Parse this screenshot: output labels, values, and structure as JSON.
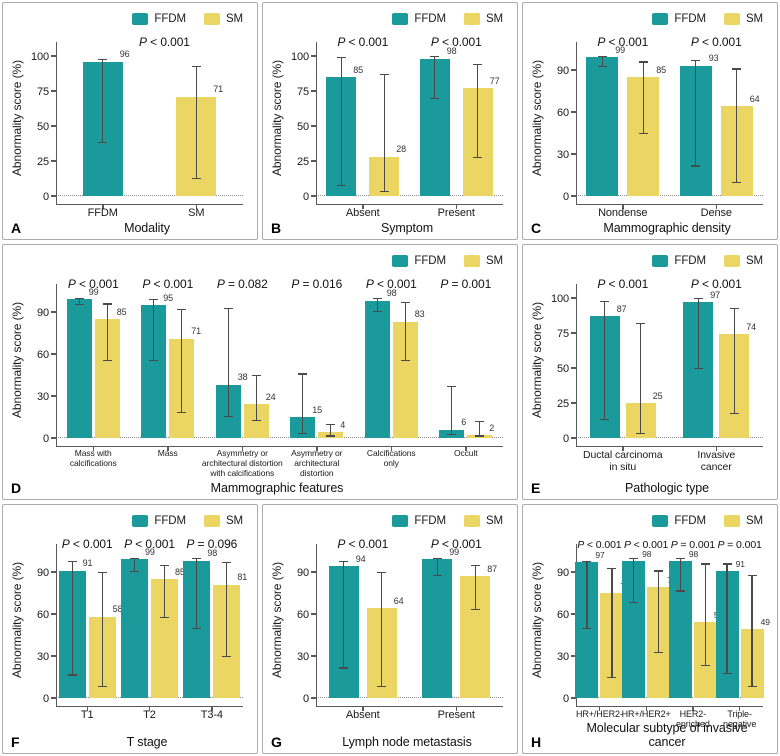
{
  "colors": {
    "ffdm": "#1b9a9b",
    "sm": "#ebd563",
    "error_bar": "#4a4a4a",
    "axis": "#5a5a5a",
    "panel_border": "#acacac"
  },
  "legend": {
    "items": [
      {
        "name": "FFDM",
        "color_key": "ffdm"
      },
      {
        "name": "SM",
        "color_key": "sm"
      }
    ],
    "position": "top-right"
  },
  "chart_data": [
    {
      "panel": "A",
      "type": "bar",
      "xlabel": "Modality",
      "ylabel": "Abnormality score (%)",
      "yticks": [
        0,
        25,
        50,
        75,
        100
      ],
      "ylim": [
        0,
        100
      ],
      "grid": false,
      "p_overall": "P < 0.001",
      "groups": [
        {
          "label": "FFDM",
          "bars": [
            {
              "series": "FFDM",
              "value": 96,
              "ci": [
                38,
                98
              ]
            }
          ]
        },
        {
          "label": "SM",
          "bars": [
            {
              "series": "SM",
              "value": 71,
              "ci": [
                12,
                93
              ]
            }
          ]
        }
      ]
    },
    {
      "panel": "B",
      "type": "bar",
      "xlabel": "Symptom",
      "ylabel": "Abnormality score (%)",
      "yticks": [
        0,
        25,
        50,
        75,
        100
      ],
      "ylim": [
        0,
        100
      ],
      "grid": false,
      "groups": [
        {
          "label": "Absent",
          "p": "P < 0.001",
          "bars": [
            {
              "series": "FFDM",
              "value": 85,
              "ci": [
                7,
                99
              ]
            },
            {
              "series": "SM",
              "value": 28,
              "ci": [
                3,
                87
              ]
            }
          ]
        },
        {
          "label": "Present",
          "p": "P < 0.001",
          "bars": [
            {
              "series": "FFDM",
              "value": 98,
              "ci": [
                69,
                100
              ]
            },
            {
              "series": "SM",
              "value": 77,
              "ci": [
                27,
                94
              ]
            }
          ]
        }
      ]
    },
    {
      "panel": "C",
      "type": "bar",
      "xlabel": "Mammographic density",
      "ylabel": "Abnormality score (%)",
      "yticks": [
        0,
        30,
        60,
        90
      ],
      "ylim": [
        0,
        100
      ],
      "grid": false,
      "groups": [
        {
          "label": "Nondense",
          "p": "P < 0.001",
          "bars": [
            {
              "series": "FFDM",
              "value": 99,
              "ci": [
                92,
                100
              ]
            },
            {
              "series": "SM",
              "value": 85,
              "ci": [
                44,
                96
              ]
            }
          ]
        },
        {
          "label": "Dense",
          "p": "P < 0.001",
          "bars": [
            {
              "series": "FFDM",
              "value": 93,
              "ci": [
                21,
                97
              ]
            },
            {
              "series": "SM",
              "value": 64,
              "ci": [
                9,
                91
              ]
            }
          ]
        }
      ]
    },
    {
      "panel": "D",
      "type": "bar",
      "xlabel": "Mammographic features",
      "ylabel": "Abnormality score (%)",
      "yticks": [
        0,
        30,
        60,
        90
      ],
      "ylim": [
        0,
        100
      ],
      "grid": false,
      "groups": [
        {
          "label": "Mass with\ncalcifications",
          "p": "P < 0.001",
          "bars": [
            {
              "series": "FFDM",
              "value": 99,
              "ci": [
                95,
                100
              ]
            },
            {
              "series": "SM",
              "value": 85,
              "ci": [
                55,
                96
              ]
            }
          ]
        },
        {
          "label": "Mass",
          "p": "P < 0.001",
          "bars": [
            {
              "series": "FFDM",
              "value": 95,
              "ci": [
                55,
                99
              ]
            },
            {
              "series": "SM",
              "value": 71,
              "ci": [
                18,
                92
              ]
            }
          ]
        },
        {
          "label": "Asymmetry or\narchitectural distortion\nwith calcifications",
          "p": "P = 0.082",
          "bars": [
            {
              "series": "FFDM",
              "value": 38,
              "ci": [
                15,
                93
              ]
            },
            {
              "series": "SM",
              "value": 24,
              "ci": [
                12,
                45
              ]
            }
          ]
        },
        {
          "label": "Asymmetry or\narchitectural\ndistortion",
          "p": "P = 0.016",
          "bars": [
            {
              "series": "FFDM",
              "value": 15,
              "ci": [
                3,
                46
              ]
            },
            {
              "series": "SM",
              "value": 4,
              "ci": [
                1,
                10
              ]
            }
          ]
        },
        {
          "label": "Calcifications\nonly",
          "p": "P < 0.001",
          "bars": [
            {
              "series": "FFDM",
              "value": 98,
              "ci": [
                90,
                100
              ]
            },
            {
              "series": "SM",
              "value": 83,
              "ci": [
                55,
                97
              ]
            }
          ]
        },
        {
          "label": "Occult",
          "p": "P = 0.001",
          "bars": [
            {
              "series": "FFDM",
              "value": 6,
              "ci": [
                2,
                37
              ]
            },
            {
              "series": "SM",
              "value": 2,
              "ci": [
                1,
                12
              ]
            }
          ]
        }
      ]
    },
    {
      "panel": "E",
      "type": "bar",
      "xlabel": "Pathologic type",
      "ylabel": "Abnormality score (%)",
      "yticks": [
        0,
        25,
        50,
        75,
        100
      ],
      "ylim": [
        0,
        100
      ],
      "grid": false,
      "groups": [
        {
          "label": "Ductal carcinoma\nin situ",
          "p": "P < 0.001",
          "bars": [
            {
              "series": "FFDM",
              "value": 87,
              "ci": [
                13,
                98
              ]
            },
            {
              "series": "SM",
              "value": 25,
              "ci": [
                3,
                82
              ]
            }
          ]
        },
        {
          "label": "Invasive\ncancer",
          "p": "P < 0.001",
          "bars": [
            {
              "series": "FFDM",
              "value": 97,
              "ci": [
                49,
                100
              ]
            },
            {
              "series": "SM",
              "value": 74,
              "ci": [
                17,
                93
              ]
            }
          ]
        }
      ]
    },
    {
      "panel": "F",
      "type": "bar",
      "xlabel": "T stage",
      "ylabel": "Abnormality score (%)",
      "yticks": [
        0,
        30,
        60,
        90
      ],
      "ylim": [
        0,
        100
      ],
      "grid": false,
      "groups": [
        {
          "label": "T1",
          "p": "P < 0.001",
          "bars": [
            {
              "series": "FFDM",
              "value": 91,
              "ci": [
                16,
                98
              ]
            },
            {
              "series": "SM",
              "value": 58,
              "ci": [
                8,
                90
              ]
            }
          ]
        },
        {
          "label": "T2",
          "p": "P < 0.001",
          "bars": [
            {
              "series": "FFDM",
              "value": 99,
              "ci": [
                90,
                100
              ]
            },
            {
              "series": "SM",
              "value": 85,
              "ci": [
                57,
                95
              ]
            }
          ]
        },
        {
          "label": "T3-4",
          "p": "P = 0.096",
          "bars": [
            {
              "series": "FFDM",
              "value": 98,
              "ci": [
                49,
                100
              ]
            },
            {
              "series": "SM",
              "value": 81,
              "ci": [
                29,
                97
              ]
            }
          ]
        }
      ]
    },
    {
      "panel": "G",
      "type": "bar",
      "xlabel": "Lymph node metastasis",
      "ylabel": "Abnormality score (%)",
      "yticks": [
        0,
        30,
        60,
        90
      ],
      "ylim": [
        0,
        100
      ],
      "grid": false,
      "groups": [
        {
          "label": "Absent",
          "p": "P < 0.001",
          "bars": [
            {
              "series": "FFDM",
              "value": 94,
              "ci": [
                21,
                98
              ]
            },
            {
              "series": "SM",
              "value": 64,
              "ci": [
                8,
                90
              ]
            }
          ]
        },
        {
          "label": "Present",
          "p": "P < 0.001",
          "bars": [
            {
              "series": "FFDM",
              "value": 99,
              "ci": [
                87,
                100
              ]
            },
            {
              "series": "SM",
              "value": 87,
              "ci": [
                63,
                95
              ]
            }
          ]
        }
      ]
    },
    {
      "panel": "H",
      "type": "bar",
      "xlabel": "Molecular subtype of invasive cancer",
      "ylabel": "Abnormality score (%)",
      "yticks": [
        0,
        30,
        60,
        90
      ],
      "ylim": [
        0,
        100
      ],
      "grid": false,
      "groups": [
        {
          "label": "HR+/HER2-",
          "p": "P < 0.001",
          "bars": [
            {
              "series": "FFDM",
              "value": 97,
              "ci": [
                49,
                98
              ]
            },
            {
              "series": "SM",
              "value": 75,
              "ci": [
                14,
                93
              ]
            }
          ]
        },
        {
          "label": "HR+/HER2+",
          "p": "P < 0.001",
          "bars": [
            {
              "series": "FFDM",
              "value": 98,
              "ci": [
                68,
                100
              ]
            },
            {
              "series": "SM",
              "value": 79,
              "ci": [
                32,
                91
              ]
            }
          ]
        },
        {
          "label": "HER2-\nenriched",
          "p": "P = 0.001",
          "bars": [
            {
              "series": "FFDM",
              "value": 98,
              "ci": [
                76,
                100
              ]
            },
            {
              "series": "SM",
              "value": 54,
              "ci": [
                23,
                96
              ]
            }
          ]
        },
        {
          "label": "Triple-\nnegative",
          "p": "P = 0.001",
          "bars": [
            {
              "series": "FFDM",
              "value": 91,
              "ci": [
                17,
                96
              ]
            },
            {
              "series": "SM",
              "value": 49,
              "ci": [
                8,
                88
              ]
            }
          ]
        }
      ]
    }
  ]
}
